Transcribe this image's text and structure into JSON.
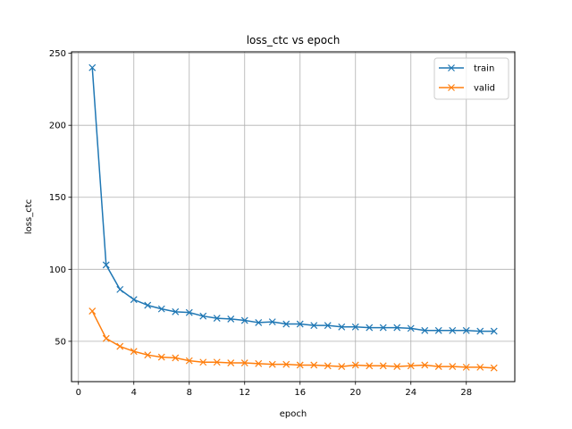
{
  "chart_data": {
    "type": "line",
    "title": "loss_ctc vs epoch",
    "xlabel": "epoch",
    "ylabel": "loss_ctc",
    "xlim": [
      -0.5,
      31.5
    ],
    "ylim": [
      22,
      251
    ],
    "xticks": [
      0,
      4,
      8,
      12,
      16,
      20,
      24,
      28
    ],
    "yticks": [
      50,
      100,
      150,
      200,
      250
    ],
    "grid": true,
    "legend": "top-right",
    "x": [
      1,
      2,
      3,
      4,
      5,
      6,
      7,
      8,
      9,
      10,
      11,
      12,
      13,
      14,
      15,
      16,
      17,
      18,
      19,
      20,
      21,
      22,
      23,
      24,
      25,
      26,
      27,
      28,
      29,
      30
    ],
    "series": [
      {
        "name": "train",
        "color": "#1f77b4",
        "marker": "x",
        "values": [
          240,
          103,
          86,
          79,
          75,
          72.5,
          70.5,
          70,
          67.5,
          66,
          65.5,
          64.5,
          63,
          63.5,
          62,
          62,
          61,
          61,
          60,
          60,
          59.5,
          59.5,
          59.5,
          59,
          57.5,
          57.5,
          57.5,
          57.5,
          57,
          57
        ]
      },
      {
        "name": "valid",
        "color": "#ff7f0e",
        "marker": "x",
        "values": [
          71,
          52,
          46.5,
          43,
          40.5,
          39,
          38.5,
          36.5,
          35.5,
          35.5,
          35,
          35,
          34.5,
          34,
          34,
          33.5,
          33.5,
          33,
          32.5,
          33.5,
          33,
          33,
          32.5,
          33,
          33.5,
          32.5,
          32.5,
          32,
          32,
          31.5
        ]
      }
    ]
  }
}
